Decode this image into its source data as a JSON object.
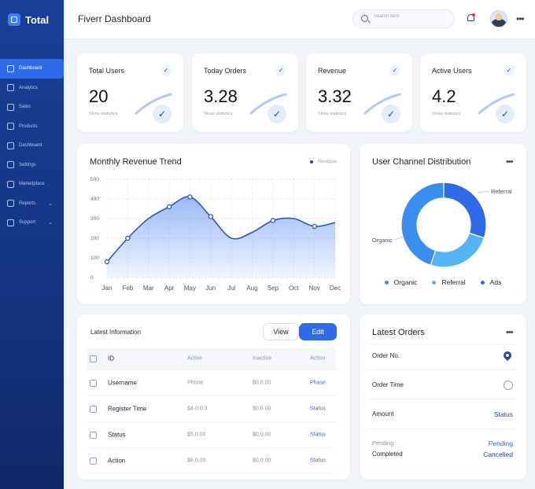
{
  "app": {
    "brand": "Total",
    "title": "Fiverr Dashboard"
  },
  "search": {
    "placeholder": "Search here"
  },
  "sidebar": {
    "items": [
      {
        "label": "Dashboard",
        "icon": "home-icon",
        "active": true,
        "chevron": false
      },
      {
        "label": "Analytics",
        "icon": "chart-icon",
        "active": false,
        "chevron": false
      },
      {
        "label": "Sales",
        "icon": "bag-icon",
        "active": false,
        "chevron": false
      },
      {
        "label": "Products",
        "icon": "box-icon",
        "active": false,
        "chevron": false
      },
      {
        "label": "Dashboard",
        "icon": "grid-icon",
        "active": false,
        "chevron": false
      },
      {
        "label": "Settings",
        "icon": "gear-icon",
        "active": false,
        "chevron": false
      },
      {
        "label": "Marketplace",
        "icon": "store-icon",
        "active": false,
        "chevron": false
      },
      {
        "label": "Reports",
        "icon": "file-icon",
        "active": false,
        "chevron": true
      },
      {
        "label": "Support",
        "icon": "help-icon",
        "active": false,
        "chevron": true
      }
    ]
  },
  "stats": [
    {
      "title": "Total Users",
      "value": "20",
      "sub": "Show statistics"
    },
    {
      "title": "Today Orders",
      "value": "3.28",
      "sub": "Show statistics"
    },
    {
      "title": "Revenue",
      "value": "3.32",
      "sub": "Show statistics"
    },
    {
      "title": "Active Users",
      "value": "4.2",
      "sub": "Show statistics"
    }
  ],
  "revenue": {
    "title": "Monthly Revenue Trend",
    "legend": "Revenue"
  },
  "chart_data": [
    {
      "type": "area",
      "title": "Monthly Revenue Trend",
      "categories": [
        "Jan",
        "Feb",
        "Mar",
        "Apr",
        "May",
        "Jun",
        "Jul",
        "Aug",
        "Sep",
        "Oct",
        "Nov",
        "Dec"
      ],
      "yticks": [
        0,
        100,
        200,
        300,
        400,
        500
      ],
      "ylim": [
        0,
        500
      ],
      "series": [
        {
          "name": "Revenue",
          "values": [
            80,
            200,
            300,
            360,
            410,
            310,
            200,
            230,
            290,
            300,
            260,
            280
          ]
        }
      ],
      "markers_at": [
        "Jan",
        "Feb",
        "Apr",
        "May",
        "Jun",
        "Sep",
        "Nov"
      ],
      "grid": true,
      "color": "#2f6ae8"
    },
    {
      "type": "pie",
      "title": "User Channel Distribution",
      "categories": [
        "Organic",
        "Referral",
        "Ads"
      ],
      "values": [
        45,
        25,
        30
      ],
      "colors": [
        "#3a8ef0",
        "#56b4f5",
        "#2f6ae8"
      ],
      "labels": {
        "referral": "Referral",
        "organic": "Organic"
      },
      "legend": [
        "Organic",
        "Referral",
        "Ads"
      ],
      "legend_position": "bottom"
    }
  ],
  "table": {
    "title": "Latest Information",
    "view_label": "View",
    "edit_label": "Edit",
    "headers": [
      "ID",
      "Active",
      "Inactive",
      "Action"
    ],
    "rows": [
      {
        "name": "Username",
        "active": "Phone",
        "inactive": "$0,0.00",
        "action": "Phase"
      },
      {
        "name": "Register Time",
        "active": "$4-0.0.3",
        "inactive": "$0,0.00",
        "action": "Status"
      },
      {
        "name": "Status",
        "active": "$5.0.00",
        "inactive": "$0,0.00",
        "action": "Status"
      },
      {
        "name": "Action",
        "active": "$6.0.00",
        "inactive": "$0,0.00",
        "action": "Status"
      }
    ]
  },
  "orders": {
    "title": "Latest Orders",
    "order_no_label": "Order No.",
    "order_time_label": "Order Time",
    "amount_label": "Amount",
    "amount_value": "Status",
    "pending_label": "Pending",
    "pending_value": "Pending",
    "completed_label": "Completed",
    "completed_value": "Cancelled"
  },
  "colors": {
    "accent": "#2f6ae8",
    "sidebar": "#1a3f98",
    "link": "#2f6ae8"
  }
}
